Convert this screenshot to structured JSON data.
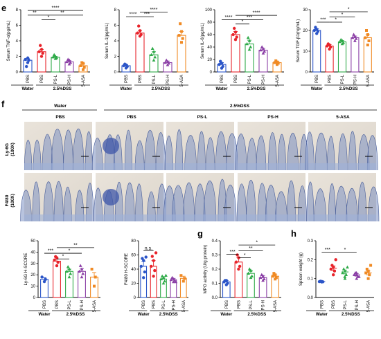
{
  "figure_panels": {
    "e": "e",
    "f": "f",
    "g": "g",
    "h": "h"
  },
  "colors": {
    "PBS_water": "#2b55c8",
    "PBS_dss": "#e8232a",
    "PS-L": "#2eaa48",
    "PS-H": "#8b3fa6",
    "5-ASA": "#f08a24"
  },
  "group_labels": {
    "water": "Water",
    "dss": "2.5%DSS"
  },
  "histology": {
    "water_header": "Water",
    "dss_header": "2.5%DSS",
    "columns": [
      "PBS",
      "PBS",
      "PS-L",
      "PS-H",
      "5-ASA"
    ],
    "rows": [
      {
        "label_line1": "Ly-6G",
        "label_line2": "(100X)"
      },
      {
        "label_line1": "F4/80",
        "label_line2": "(100X)"
      }
    ]
  },
  "chart_data": [
    {
      "panel": "e",
      "type": "bar",
      "ylabel": "Serum TNF-α(pg/mL)",
      "ylim": [
        0,
        8
      ],
      "yticks": [
        0,
        2,
        4,
        6,
        8
      ],
      "categories": [
        "PBS",
        "PBS",
        "PS-L",
        "PS-H",
        "5-ASA"
      ],
      "values": [
        1.5,
        2.6,
        1.9,
        1.3,
        0.8
      ],
      "errors": [
        0.2,
        0.3,
        0.1,
        0.15,
        0.25
      ],
      "points": [
        [
          1.2,
          1.5,
          1.6,
          1.8,
          0.7
        ],
        [
          2.0,
          2.4,
          2.6,
          2.9,
          3.4
        ],
        [
          1.7,
          1.8,
          1.9,
          2.0,
          2.2
        ],
        [
          1.0,
          1.2,
          1.3,
          1.5,
          1.6
        ],
        [
          0.3,
          0.6,
          0.8,
          1.1,
          1.2
        ]
      ],
      "significance": [
        {
          "from": 0,
          "to": 1,
          "label": "**",
          "level": 7.3
        },
        {
          "from": 1,
          "to": 2,
          "label": "*",
          "level": 6.7
        },
        {
          "from": 1,
          "to": 4,
          "label": "**",
          "level": 7.3
        },
        {
          "from": 0,
          "to": 4,
          "label": "****",
          "level": 7.9
        }
      ],
      "groups": [
        "Water",
        "2.5%DSS"
      ]
    },
    {
      "panel": "e",
      "type": "bar",
      "ylabel": "Serum IL-1(pg/mL)",
      "ylim": [
        0,
        8
      ],
      "yticks": [
        0,
        2,
        4,
        6,
        8
      ],
      "categories": [
        "PBS",
        "PBS",
        "PS-L",
        "PS-H",
        "5-ASA"
      ],
      "values": [
        0.8,
        5.0,
        2.2,
        1.2,
        4.7
      ],
      "errors": [
        0.15,
        0.35,
        0.4,
        0.2,
        0.5
      ],
      "points": [
        [
          0.5,
          0.7,
          0.8,
          0.9,
          1.0
        ],
        [
          4.6,
          4.8,
          5.0,
          5.3,
          5.9
        ],
        [
          1.5,
          1.9,
          2.2,
          2.6,
          3.0
        ],
        [
          0.9,
          1.1,
          1.2,
          1.3,
          1.5
        ],
        [
          3.8,
          4.3,
          4.7,
          5.2,
          6.2
        ]
      ],
      "significance": [
        {
          "from": 0,
          "to": 1,
          "label": "****",
          "level": 7.1
        },
        {
          "from": 1,
          "to": 2,
          "label": "***",
          "level": 7.1
        },
        {
          "from": 1,
          "to": 3,
          "label": "****",
          "level": 7.7
        }
      ],
      "groups": [
        "Water",
        "2.5%DSS"
      ]
    },
    {
      "panel": "e",
      "type": "bar",
      "ylabel": "Serum IL-6(pg/mL)",
      "ylim": [
        0,
        100
      ],
      "yticks": [
        0,
        20,
        40,
        60,
        80,
        100
      ],
      "categories": [
        "PBS",
        "PBS",
        "PS-L",
        "PS-H",
        "5-ASA"
      ],
      "values": [
        12,
        60,
        45,
        35,
        15
      ],
      "errors": [
        3,
        5,
        6,
        3,
        2
      ],
      "points": [
        [
          6,
          9,
          12,
          14,
          17
        ],
        [
          52,
          56,
          60,
          64,
          70
        ],
        [
          36,
          40,
          45,
          50,
          55
        ],
        [
          30,
          33,
          35,
          37,
          40
        ],
        [
          12,
          14,
          15,
          16,
          18
        ]
      ],
      "significance": [
        {
          "from": 0,
          "to": 1,
          "label": "****",
          "level": 84
        },
        {
          "from": 1,
          "to": 2,
          "label": "*",
          "level": 77
        },
        {
          "from": 1,
          "to": 3,
          "label": "***",
          "level": 84
        },
        {
          "from": 1,
          "to": 4,
          "label": "****",
          "level": 91
        }
      ],
      "groups": [
        "Water",
        "2.5%DSS"
      ]
    },
    {
      "panel": "e",
      "type": "bar",
      "ylabel": "Serum TGF-β1(ng/mL)",
      "ylim": [
        0,
        30
      ],
      "yticks": [
        0,
        10,
        20,
        30
      ],
      "categories": [
        "PBS",
        "PBS",
        "PS-L",
        "PS-H",
        "5-ASA"
      ],
      "values": [
        20,
        12.5,
        14.5,
        16.5,
        16.5
      ],
      "errors": [
        0.8,
        0.7,
        0.6,
        0.8,
        1.5
      ],
      "points": [
        [
          18.5,
          19.5,
          20,
          20.5,
          21.5
        ],
        [
          11,
          12,
          12.5,
          13,
          13.5
        ],
        [
          13.5,
          14,
          14.5,
          15,
          15.5
        ],
        [
          15,
          16,
          16.5,
          17,
          18
        ],
        [
          13,
          15,
          16.5,
          18,
          20
        ]
      ],
      "significance": [
        {
          "from": 0,
          "to": 1,
          "label": "***",
          "level": 24
        },
        {
          "from": 1,
          "to": 2,
          "label": "*",
          "level": 24
        },
        {
          "from": 1,
          "to": 3,
          "label": "*",
          "level": 26.5
        },
        {
          "from": 1,
          "to": 4,
          "label": "*",
          "level": 29
        }
      ],
      "groups": [
        "Water",
        "2.5%DSS"
      ]
    },
    {
      "panel": "f",
      "type": "bar",
      "ylabel": "Ly-6G H-SCORE",
      "ylim": [
        0,
        50
      ],
      "yticks": [
        0,
        10,
        20,
        30,
        40,
        50
      ],
      "categories": [
        "PBS",
        "PBS",
        "PS-L",
        "PS-H",
        "5-ASA"
      ],
      "values": [
        16,
        32,
        23,
        23,
        18
      ],
      "errors": [
        1.5,
        2,
        2,
        2.5,
        4
      ],
      "points": [
        [
          14,
          16,
          18
        ],
        [
          28,
          31,
          33,
          35,
          36
        ],
        [
          18,
          21,
          23,
          25,
          27
        ],
        [
          18,
          21,
          23,
          25,
          28
        ],
        [
          10,
          18,
          25
        ]
      ],
      "significance": [
        {
          "from": 0,
          "to": 1,
          "label": "***",
          "level": 39
        },
        {
          "from": 1,
          "to": 2,
          "label": "*",
          "level": 34
        },
        {
          "from": 1,
          "to": 3,
          "label": "*",
          "level": 39
        },
        {
          "from": 1,
          "to": 4,
          "label": "**",
          "level": 44
        }
      ],
      "groups": [
        "Water",
        "2.5%DSS"
      ]
    },
    {
      "panel": "f",
      "type": "bar",
      "ylabel": "F4/80 H-SCORE",
      "ylim": [
        0,
        80
      ],
      "yticks": [
        0,
        20,
        40,
        60,
        80
      ],
      "categories": [
        "PBS",
        "PBS",
        "PS-L",
        "PS-H",
        "5-ASA"
      ],
      "values": [
        44,
        44,
        26,
        25,
        27
      ],
      "errors": [
        7,
        8,
        3,
        2,
        3
      ],
      "points": [
        [
          28,
          36,
          44,
          52,
          55,
          57
        ],
        [
          30,
          38,
          44,
          52,
          58,
          63
        ],
        [
          20,
          23,
          26,
          28,
          30,
          31
        ],
        [
          22,
          24,
          25,
          26,
          28,
          22
        ],
        [
          23,
          27,
          31
        ]
      ],
      "significance": [
        {
          "from": 0,
          "to": 1,
          "label": "n.s.",
          "level": 66
        }
      ],
      "groups": [
        "Water",
        "2.5%DSS"
      ]
    },
    {
      "panel": "g",
      "type": "bar",
      "ylabel": "MPO activity (U/g protein)",
      "ylim": [
        0,
        0.4
      ],
      "yticks": [
        0.0,
        0.1,
        0.2,
        0.3,
        0.4
      ],
      "categories": [
        "PBS",
        "PBS",
        "PS-L",
        "PS-H",
        "5-ASA"
      ],
      "values": [
        0.11,
        0.25,
        0.17,
        0.14,
        0.15
      ],
      "errors": [
        0.01,
        0.03,
        0.02,
        0.015,
        0.01
      ],
      "points": [
        [
          0.09,
          0.1,
          0.11,
          0.12,
          0.12
        ],
        [
          0.2,
          0.22,
          0.25,
          0.28,
          0.3
        ],
        [
          0.14,
          0.15,
          0.17,
          0.19,
          0.2
        ],
        [
          0.12,
          0.13,
          0.14,
          0.15,
          0.16
        ],
        [
          0.13,
          0.14,
          0.15,
          0.16,
          0.17
        ]
      ],
      "significance": [
        {
          "from": 0,
          "to": 1,
          "label": "***",
          "level": 0.305
        },
        {
          "from": 1,
          "to": 2,
          "label": "*",
          "level": 0.28
        },
        {
          "from": 1,
          "to": 3,
          "label": "**",
          "level": 0.33
        },
        {
          "from": 1,
          "to": 4,
          "label": "*",
          "level": 0.37
        }
      ],
      "groups": [
        "Water",
        "2.5%DSS"
      ]
    },
    {
      "panel": "h",
      "type": "scatter",
      "ylabel": "Spleen weight (g)",
      "ylim": [
        0,
        0.3
      ],
      "yticks": [
        0.0,
        0.1,
        0.2,
        0.3
      ],
      "categories": [
        "PBS",
        "PBS",
        "PS-L",
        "PS-H",
        "5-ASA"
      ],
      "values": [
        0.084,
        0.155,
        0.135,
        0.12,
        0.13
      ],
      "errors": [
        0.003,
        0.012,
        0.01,
        0.007,
        0.01
      ],
      "points": [
        [
          0.082,
          0.083,
          0.084,
          0.085,
          0.086
        ],
        [
          0.12,
          0.14,
          0.15,
          0.16,
          0.17,
          0.2
        ],
        [
          0.1,
          0.12,
          0.13,
          0.14,
          0.15,
          0.16,
          0.11
        ],
        [
          0.1,
          0.11,
          0.12,
          0.12,
          0.13,
          0.11,
          0.13
        ],
        [
          0.1,
          0.12,
          0.13,
          0.14,
          0.15,
          0.17
        ]
      ],
      "significance": [
        {
          "from": 0,
          "to": 1,
          "label": "***",
          "level": 0.24
        },
        {
          "from": 1,
          "to": 3,
          "label": "*",
          "level": 0.24
        }
      ],
      "groups": [
        "Water",
        "2.5%DSS"
      ]
    }
  ]
}
